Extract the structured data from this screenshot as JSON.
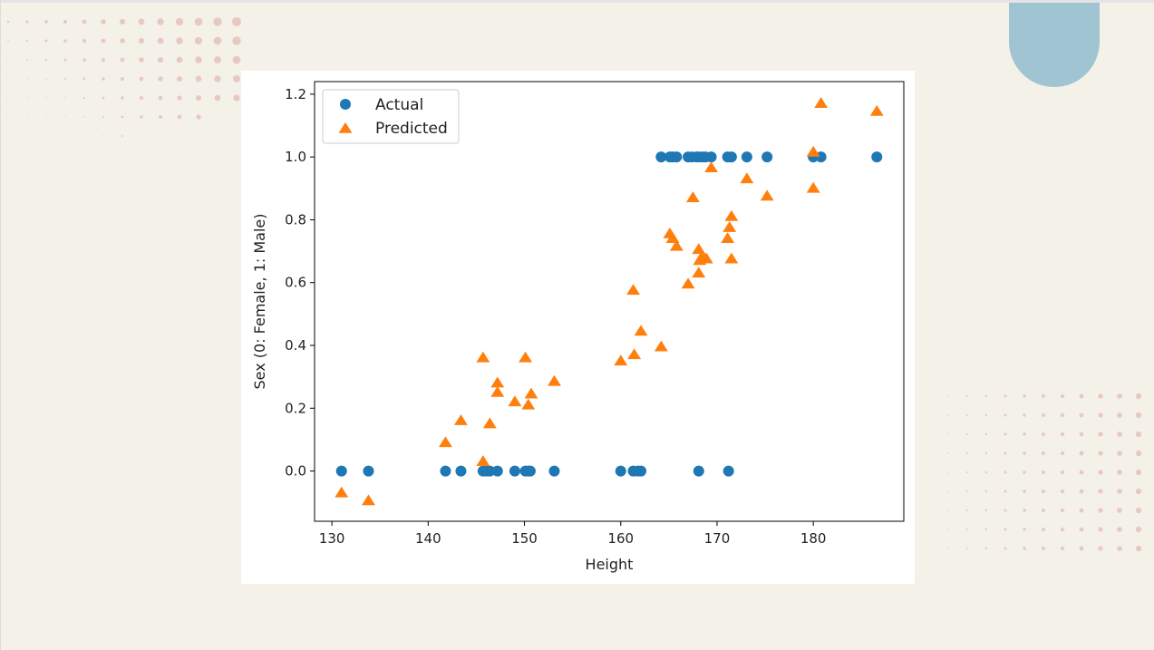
{
  "colors": {
    "background": "#f4f1e9",
    "actual": "#1f77b4",
    "predicted": "#ff7f0e",
    "accent_pill": "#a1c4d2",
    "dots": "#e8c9c2"
  },
  "chart_data": {
    "type": "scatter",
    "xlabel": "Height",
    "ylabel": "Sex (0: Female, 1: Male)",
    "xlim": [
      128.2,
      189.4
    ],
    "ylim": [
      -0.16,
      1.24
    ],
    "xticks": [
      130,
      140,
      150,
      160,
      170,
      180
    ],
    "yticks": [
      0.0,
      0.2,
      0.4,
      0.6,
      0.8,
      1.0,
      1.2
    ],
    "legend_position": "upper-left",
    "series": [
      {
        "name": "Actual",
        "marker": "circle",
        "color": "#1f77b4",
        "points": [
          [
            131,
            0
          ],
          [
            133.8,
            0
          ],
          [
            141.8,
            0
          ],
          [
            143.4,
            0
          ],
          [
            145.7,
            0
          ],
          [
            146.1,
            0
          ],
          [
            146.4,
            0
          ],
          [
            147.2,
            0
          ],
          [
            149,
            0
          ],
          [
            150.1,
            0
          ],
          [
            150.4,
            0
          ],
          [
            150.6,
            0
          ],
          [
            153.1,
            0
          ],
          [
            160,
            0
          ],
          [
            161.3,
            0
          ],
          [
            161.8,
            0
          ],
          [
            162.1,
            0
          ],
          [
            168.1,
            0
          ],
          [
            171.2,
            0
          ],
          [
            164.2,
            1
          ],
          [
            165.1,
            1
          ],
          [
            165.4,
            1
          ],
          [
            165.8,
            1
          ],
          [
            167,
            1
          ],
          [
            167.4,
            1
          ],
          [
            167.9,
            1
          ],
          [
            168.1,
            1
          ],
          [
            168.5,
            1
          ],
          [
            168.8,
            1
          ],
          [
            169.4,
            1
          ],
          [
            171.1,
            1
          ],
          [
            171.5,
            1
          ],
          [
            173.1,
            1
          ],
          [
            175.2,
            1
          ],
          [
            180,
            1
          ],
          [
            180.8,
            1
          ],
          [
            186.6,
            1
          ]
        ]
      },
      {
        "name": "Predicted",
        "marker": "triangle",
        "color": "#ff7f0e",
        "points": [
          [
            131,
            -0.07
          ],
          [
            133.8,
            -0.095
          ],
          [
            141.8,
            0.09
          ],
          [
            143.4,
            0.16
          ],
          [
            145.7,
            0.03
          ],
          [
            145.7,
            0.36
          ],
          [
            146.4,
            0.15
          ],
          [
            147.2,
            0.28
          ],
          [
            147.2,
            0.25
          ],
          [
            149,
            0.22
          ],
          [
            150.1,
            0.36
          ],
          [
            150.4,
            0.21
          ],
          [
            150.7,
            0.245
          ],
          [
            153.1,
            0.285
          ],
          [
            160,
            0.35
          ],
          [
            161.3,
            0.575
          ],
          [
            161.4,
            0.37
          ],
          [
            162.1,
            0.445
          ],
          [
            164.2,
            0.395
          ],
          [
            165.1,
            0.755
          ],
          [
            165.4,
            0.74
          ],
          [
            165.8,
            0.715
          ],
          [
            167,
            0.595
          ],
          [
            167.5,
            0.87
          ],
          [
            168.1,
            0.705
          ],
          [
            168.1,
            0.63
          ],
          [
            168.2,
            0.67
          ],
          [
            168.5,
            0.685
          ],
          [
            168.9,
            0.675
          ],
          [
            169.4,
            0.965
          ],
          [
            171.1,
            0.74
          ],
          [
            171.3,
            0.775
          ],
          [
            171.5,
            0.81
          ],
          [
            171.5,
            0.675
          ],
          [
            173.1,
            0.93
          ],
          [
            175.2,
            0.875
          ],
          [
            180,
            1.015
          ],
          [
            180,
            0.9
          ],
          [
            180.8,
            1.17
          ],
          [
            186.6,
            1.145
          ]
        ]
      }
    ]
  }
}
